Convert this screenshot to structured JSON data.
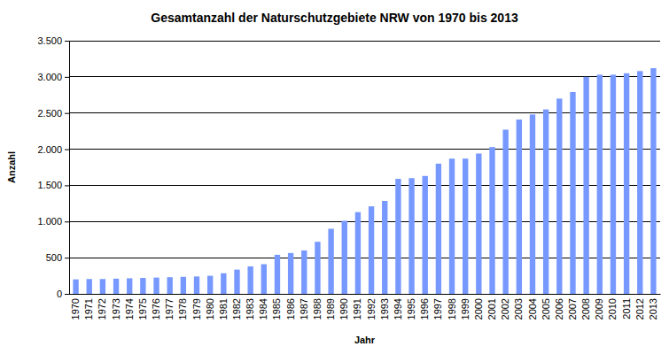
{
  "chart_data": {
    "type": "bar",
    "title": "Gesamtanzahl der Naturschutzgebiete NRW von 1970 bis 2013",
    "x_label": "Jahr",
    "y_label": "Anzahl",
    "categories": [
      "1970",
      "1971",
      "1972",
      "1973",
      "1974",
      "1975",
      "1976",
      "1977",
      "1978",
      "1979",
      "1980",
      "1981",
      "1982",
      "1983",
      "1984",
      "1985",
      "1986",
      "1987",
      "1988",
      "1989",
      "1990",
      "1991",
      "1992",
      "1993",
      "1994",
      "1995",
      "1996",
      "1997",
      "1998",
      "1999",
      "2000",
      "2001",
      "2002",
      "2003",
      "2004",
      "2005",
      "2006",
      "2007",
      "2008",
      "2009",
      "2010",
      "2011",
      "2012",
      "2013"
    ],
    "values": [
      200,
      205,
      205,
      210,
      215,
      220,
      225,
      230,
      235,
      240,
      250,
      285,
      335,
      380,
      410,
      540,
      565,
      600,
      720,
      900,
      1010,
      1130,
      1210,
      1285,
      1590,
      1600,
      1630,
      1800,
      1870,
      1870,
      1940,
      2030,
      2270,
      2410,
      2480,
      2550,
      2700,
      2790,
      3000,
      3030,
      3030,
      3050,
      3080,
      3120
    ],
    "color": "#7799ff",
    "ylim": [
      0,
      3500
    ],
    "yticks": [
      0,
      500,
      {
        "value": 1000,
        "label": "1.000"
      },
      {
        "value": 1500,
        "label": "1.500"
      },
      {
        "value": 2000,
        "label": "2.000"
      },
      {
        "value": 2500,
        "label": "2.500"
      },
      {
        "value": 3000,
        "label": "3.000"
      },
      {
        "value": 3500,
        "label": "3.500"
      }
    ],
    "grid": true
  }
}
